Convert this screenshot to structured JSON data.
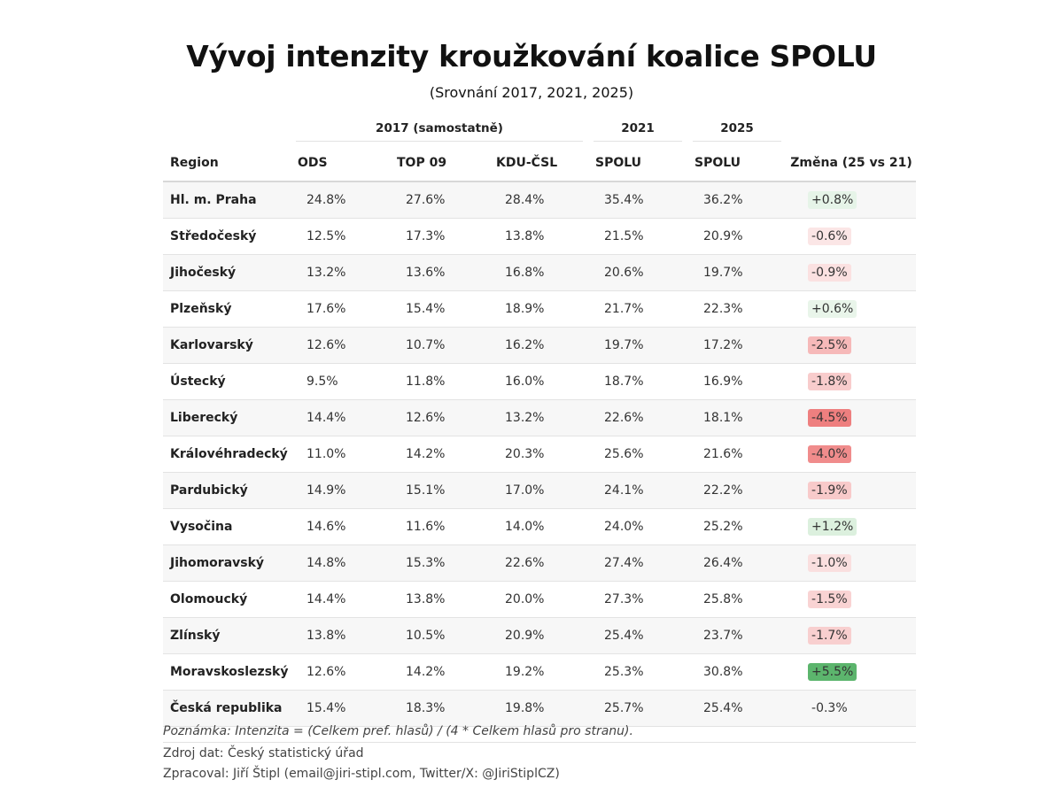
{
  "title": "Vývoj intenzity kroužkování koalice SPOLU",
  "subtitle": "(Srovnání 2017, 2021, 2025)",
  "table": {
    "spanners": [
      "2017 (samostatně)",
      "2021",
      "2025"
    ],
    "columns": [
      "Region",
      "ODS",
      "TOP 09",
      "KDU-ČSL",
      "SPOLU",
      "SPOLU",
      "Změna (25 vs 21)"
    ],
    "rows": [
      {
        "region": "Hl. m. Praha",
        "ods": "24.8%",
        "top09": "27.6%",
        "kdu": "28.4%",
        "spolu21": "35.4%",
        "spolu25": "36.2%",
        "change": "+0.8%",
        "change_color": "#e6f4e8"
      },
      {
        "region": "Středočeský",
        "ods": "12.5%",
        "top09": "17.3%",
        "kdu": "13.8%",
        "spolu21": "21.5%",
        "spolu25": "20.9%",
        "change": "-0.6%",
        "change_color": "#fbe6e6"
      },
      {
        "region": "Jihočeský",
        "ods": "13.2%",
        "top09": "13.6%",
        "kdu": "16.8%",
        "spolu21": "20.6%",
        "spolu25": "19.7%",
        "change": "-0.9%",
        "change_color": "#fbe1e1"
      },
      {
        "region": "Plzeňský",
        "ods": "17.6%",
        "top09": "15.4%",
        "kdu": "18.9%",
        "spolu21": "21.7%",
        "spolu25": "22.3%",
        "change": "+0.6%",
        "change_color": "#e9f5ea"
      },
      {
        "region": "Karlovarský",
        "ods": "12.6%",
        "top09": "10.7%",
        "kdu": "16.2%",
        "spolu21": "19.7%",
        "spolu25": "17.2%",
        "change": "-2.5%",
        "change_color": "#f6b9b9"
      },
      {
        "region": "Ústecký",
        "ods": "9.5%",
        "top09": "11.8%",
        "kdu": "16.0%",
        "spolu21": "18.7%",
        "spolu25": "16.9%",
        "change": "-1.8%",
        "change_color": "#f8cccc"
      },
      {
        "region": "Liberecký",
        "ods": "14.4%",
        "top09": "12.6%",
        "kdu": "13.2%",
        "spolu21": "22.6%",
        "spolu25": "18.1%",
        "change": "-4.5%",
        "change_color": "#ee7f7f"
      },
      {
        "region": "Královéhradecký",
        "ods": "11.0%",
        "top09": "14.2%",
        "kdu": "20.3%",
        "spolu21": "25.6%",
        "spolu25": "21.6%",
        "change": "-4.0%",
        "change_color": "#f08c8c"
      },
      {
        "region": "Pardubický",
        "ods": "14.9%",
        "top09": "15.1%",
        "kdu": "17.0%",
        "spolu21": "24.1%",
        "spolu25": "22.2%",
        "change": "-1.9%",
        "change_color": "#f8caca"
      },
      {
        "region": "Vysočina",
        "ods": "14.6%",
        "top09": "11.6%",
        "kdu": "14.0%",
        "spolu21": "24.0%",
        "spolu25": "25.2%",
        "change": "+1.2%",
        "change_color": "#dcf0de"
      },
      {
        "region": "Jihomoravský",
        "ods": "14.8%",
        "top09": "15.3%",
        "kdu": "22.6%",
        "spolu21": "27.4%",
        "spolu25": "26.4%",
        "change": "-1.0%",
        "change_color": "#fadfdf"
      },
      {
        "region": "Olomoucký",
        "ods": "14.4%",
        "top09": "13.8%",
        "kdu": "20.0%",
        "spolu21": "27.3%",
        "spolu25": "25.8%",
        "change": "-1.5%",
        "change_color": "#f9d3d3"
      },
      {
        "region": "Zlínský",
        "ods": "13.8%",
        "top09": "10.5%",
        "kdu": "20.9%",
        "spolu21": "25.4%",
        "spolu25": "23.7%",
        "change": "-1.7%",
        "change_color": "#f8cfcf"
      },
      {
        "region": "Moravskoslezský",
        "ods": "12.6%",
        "top09": "14.2%",
        "kdu": "19.2%",
        "spolu21": "25.3%",
        "spolu25": "30.8%",
        "change": "+5.5%",
        "change_color": "#5cb56d"
      },
      {
        "region": "Česká republika",
        "ods": "15.4%",
        "top09": "18.3%",
        "kdu": "19.8%",
        "spolu21": "25.7%",
        "spolu25": "25.4%",
        "change": "-0.3%",
        "change_color": ""
      }
    ]
  },
  "notes": {
    "formula": "Poznámka: Intenzita = (Celkem pref. hlasů) / (4 * Celkem hlasů pro stranu).",
    "source": "Zdroj dat: Český statistický úřad",
    "author": "Zpracoval: Jiří Štipl (email@jiri-stipl.com, Twitter/X: @JiriStiplCZ)"
  }
}
